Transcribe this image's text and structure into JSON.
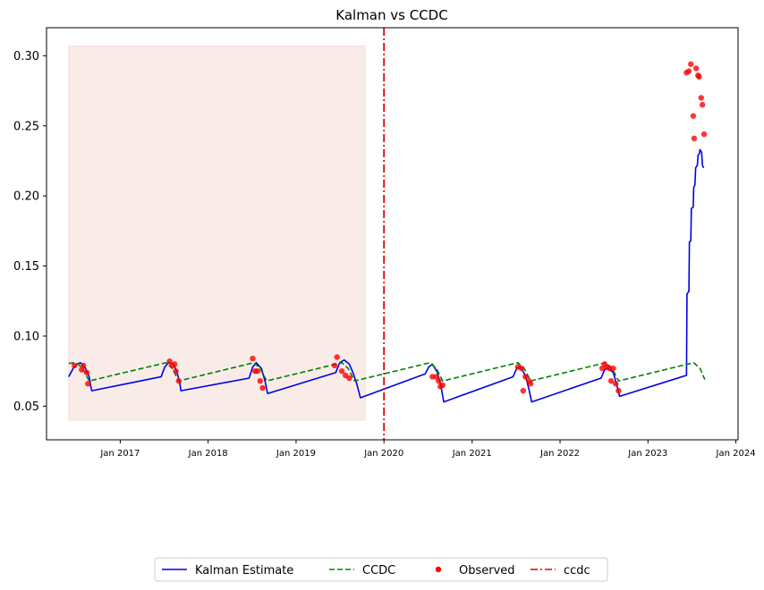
{
  "chart_data": {
    "type": "line",
    "title": "Kalman vs CCDC",
    "xlabel": "",
    "ylabel": "",
    "xlim": [
      "2016-03-01",
      "2024-01-10"
    ],
    "ylim": [
      0.026,
      0.32
    ],
    "x_ticks": [
      {
        "date": "2017-01-01",
        "label": "Jan 2017"
      },
      {
        "date": "2018-01-01",
        "label": "Jan 2018"
      },
      {
        "date": "2019-01-01",
        "label": "Jan 2019"
      },
      {
        "date": "2020-01-01",
        "label": "Jan 2020"
      },
      {
        "date": "2021-01-01",
        "label": "Jan 2021"
      },
      {
        "date": "2022-01-01",
        "label": "Jan 2022"
      },
      {
        "date": "2023-01-01",
        "label": "Jan 2023"
      },
      {
        "date": "2024-01-01",
        "label": "Jan 2024"
      }
    ],
    "y_ticks": [
      {
        "value": 0.05,
        "label": "0.05"
      },
      {
        "value": 0.1,
        "label": "0.10"
      },
      {
        "value": 0.15,
        "label": "0.15"
      },
      {
        "value": 0.2,
        "label": "0.20"
      },
      {
        "value": 0.25,
        "label": "0.25"
      },
      {
        "value": 0.3,
        "label": "0.30"
      }
    ],
    "grid": false,
    "legend_placement": "bottom-center",
    "shaded_region": {
      "x": [
        "2016-06-01",
        "2019-10-15"
      ],
      "y": [
        0.04,
        0.307
      ],
      "color": "#f9ece8"
    },
    "vline": {
      "name": "ccdc",
      "date": "2020-01-01",
      "color": "#e00000"
    },
    "series": [
      {
        "name": "Kalman Estimate",
        "style": "solid",
        "color": "#0000e6",
        "points": [
          [
            "2016-06-01",
            0.071
          ],
          [
            "2016-06-20",
            0.077
          ],
          [
            "2016-07-05",
            0.08
          ],
          [
            "2016-07-20",
            0.081
          ],
          [
            "2016-08-10",
            0.077
          ],
          [
            "2016-08-25",
            0.071
          ],
          [
            "2016-09-01",
            0.064
          ],
          [
            "2016-09-05",
            0.061
          ],
          [
            "2017-06-20",
            0.071
          ],
          [
            "2017-07-05",
            0.078
          ],
          [
            "2017-07-20",
            0.081
          ],
          [
            "2017-08-10",
            0.08
          ],
          [
            "2017-08-25",
            0.074
          ],
          [
            "2017-09-05",
            0.067
          ],
          [
            "2017-09-10",
            0.061
          ],
          [
            "2018-06-20",
            0.07
          ],
          [
            "2018-07-05",
            0.078
          ],
          [
            "2018-07-20",
            0.081
          ],
          [
            "2018-08-10",
            0.077
          ],
          [
            "2018-08-25",
            0.068
          ],
          [
            "2018-09-05",
            0.059
          ],
          [
            "2019-06-15",
            0.074
          ],
          [
            "2019-07-01",
            0.081
          ],
          [
            "2019-07-20",
            0.083
          ],
          [
            "2019-08-10",
            0.08
          ],
          [
            "2019-08-25",
            0.074
          ],
          [
            "2019-09-10",
            0.066
          ],
          [
            "2019-09-25",
            0.056
          ],
          [
            "2020-06-20",
            0.073
          ],
          [
            "2020-07-05",
            0.078
          ],
          [
            "2020-07-20",
            0.08
          ],
          [
            "2020-08-10",
            0.074
          ],
          [
            "2020-08-25",
            0.064
          ],
          [
            "2020-09-05",
            0.053
          ],
          [
            "2021-06-20",
            0.071
          ],
          [
            "2021-07-05",
            0.077
          ],
          [
            "2021-07-20",
            0.078
          ],
          [
            "2021-08-10",
            0.072
          ],
          [
            "2021-08-25",
            0.062
          ],
          [
            "2021-09-05",
            0.053
          ],
          [
            "2022-06-20",
            0.07
          ],
          [
            "2022-07-05",
            0.076
          ],
          [
            "2022-07-20",
            0.077
          ],
          [
            "2022-08-10",
            0.074
          ],
          [
            "2022-08-25",
            0.065
          ],
          [
            "2022-09-05",
            0.057
          ],
          [
            "2023-06-10",
            0.072
          ],
          [
            "2023-06-12",
            0.13
          ],
          [
            "2023-06-20",
            0.132
          ],
          [
            "2023-06-22",
            0.167
          ],
          [
            "2023-06-28",
            0.168
          ],
          [
            "2023-06-30",
            0.191
          ],
          [
            "2023-07-08",
            0.192
          ],
          [
            "2023-07-10",
            0.206
          ],
          [
            "2023-07-15",
            0.208
          ],
          [
            "2023-07-18",
            0.22
          ],
          [
            "2023-07-25",
            0.222
          ],
          [
            "2023-07-28",
            0.229
          ],
          [
            "2023-08-02",
            0.23
          ],
          [
            "2023-08-05",
            0.233
          ],
          [
            "2023-08-12",
            0.231
          ],
          [
            "2023-08-15",
            0.222
          ],
          [
            "2023-08-20",
            0.22
          ]
        ]
      },
      {
        "name": "CCDC",
        "style": "dashed",
        "color": "#008000",
        "points": [
          [
            "2016-06-01",
            0.0805
          ],
          [
            "2016-06-20",
            0.081
          ],
          [
            "2016-07-10",
            0.08
          ],
          [
            "2016-08-01",
            0.076
          ],
          [
            "2016-08-25",
            0.068
          ],
          [
            "2017-06-15",
            0.08
          ],
          [
            "2017-07-10",
            0.081
          ],
          [
            "2017-08-05",
            0.077
          ],
          [
            "2017-09-01",
            0.068
          ],
          [
            "2018-06-15",
            0.08
          ],
          [
            "2018-07-10",
            0.081
          ],
          [
            "2018-08-05",
            0.077
          ],
          [
            "2018-09-01",
            0.068
          ],
          [
            "2019-06-15",
            0.08
          ],
          [
            "2019-07-10",
            0.081
          ],
          [
            "2019-08-05",
            0.077
          ],
          [
            "2019-09-01",
            0.068
          ],
          [
            "2020-06-15",
            0.08
          ],
          [
            "2020-07-10",
            0.081
          ],
          [
            "2020-08-05",
            0.077
          ],
          [
            "2020-09-01",
            0.068
          ],
          [
            "2021-06-15",
            0.08
          ],
          [
            "2021-07-10",
            0.081
          ],
          [
            "2021-08-05",
            0.077
          ],
          [
            "2021-09-01",
            0.068
          ],
          [
            "2022-06-15",
            0.08
          ],
          [
            "2022-07-10",
            0.081
          ],
          [
            "2022-08-05",
            0.077
          ],
          [
            "2022-09-01",
            0.068
          ],
          [
            "2023-06-15",
            0.08
          ],
          [
            "2023-07-10",
            0.081
          ],
          [
            "2023-08-05",
            0.077
          ],
          [
            "2023-08-25",
            0.069
          ]
        ]
      }
    ],
    "scatter": {
      "name": "Observed",
      "color": "#ff0000",
      "points": [
        [
          "2016-06-25",
          0.079
        ],
        [
          "2016-07-25",
          0.076
        ],
        [
          "2016-08-01",
          0.079
        ],
        [
          "2016-08-15",
          0.074
        ],
        [
          "2016-08-20",
          0.066
        ],
        [
          "2017-07-25",
          0.082
        ],
        [
          "2017-08-05",
          0.079
        ],
        [
          "2017-08-15",
          0.08
        ],
        [
          "2017-08-20",
          0.075
        ],
        [
          "2017-09-01",
          0.068
        ],
        [
          "2018-07-05",
          0.084
        ],
        [
          "2018-07-15",
          0.075
        ],
        [
          "2018-07-25",
          0.075
        ],
        [
          "2018-08-05",
          0.068
        ],
        [
          "2018-08-15",
          0.063
        ],
        [
          "2019-06-10",
          0.079
        ],
        [
          "2019-06-20",
          0.085
        ],
        [
          "2019-07-10",
          0.075
        ],
        [
          "2019-07-25",
          0.072
        ],
        [
          "2019-08-10",
          0.07
        ],
        [
          "2020-07-20",
          0.071
        ],
        [
          "2020-08-05",
          0.071
        ],
        [
          "2020-08-15",
          0.068
        ],
        [
          "2020-08-22",
          0.064
        ],
        [
          "2020-09-01",
          0.065
        ],
        [
          "2021-07-10",
          0.078
        ],
        [
          "2021-07-25",
          0.077
        ],
        [
          "2021-08-01",
          0.061
        ],
        [
          "2021-08-10",
          0.071
        ],
        [
          "2021-08-25",
          0.068
        ],
        [
          "2021-09-01",
          0.066
        ],
        [
          "2022-06-25",
          0.077
        ],
        [
          "2022-07-05",
          0.08
        ],
        [
          "2022-07-15",
          0.078
        ],
        [
          "2022-07-25",
          0.077
        ],
        [
          "2022-08-01",
          0.068
        ],
        [
          "2022-08-10",
          0.077
        ],
        [
          "2022-08-20",
          0.066
        ],
        [
          "2022-09-01",
          0.061
        ],
        [
          "2023-06-10",
          0.288
        ],
        [
          "2023-06-20",
          0.289
        ],
        [
          "2023-06-28",
          0.294
        ],
        [
          "2023-07-08",
          0.257
        ],
        [
          "2023-07-12",
          0.241
        ],
        [
          "2023-07-20",
          0.291
        ],
        [
          "2023-07-28",
          0.286
        ],
        [
          "2023-08-01",
          0.285
        ],
        [
          "2023-08-10",
          0.27
        ],
        [
          "2023-08-15",
          0.265
        ],
        [
          "2023-08-22",
          0.244
        ]
      ]
    },
    "legend": [
      {
        "name": "Kalman Estimate",
        "style": "solid",
        "color": "#0000e6"
      },
      {
        "name": "CCDC",
        "style": "dashed",
        "color": "#008000"
      },
      {
        "name": "Observed",
        "style": "marker",
        "color": "#ff0000"
      },
      {
        "name": "ccdc",
        "style": "dashdot",
        "color": "#e00000"
      }
    ]
  }
}
